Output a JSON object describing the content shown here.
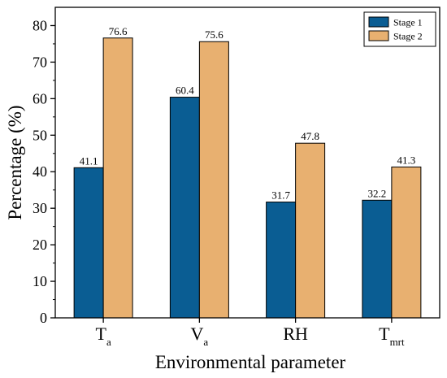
{
  "chart_data": {
    "type": "bar",
    "xlabel": "Environmental parameter",
    "ylabel": "Percentage (%)",
    "ylim": [
      0,
      85
    ],
    "yticks": [
      0,
      10,
      20,
      30,
      40,
      50,
      60,
      70,
      80
    ],
    "categories": [
      {
        "main": "T",
        "sub": "a"
      },
      {
        "main": "V",
        "sub": "a"
      },
      {
        "main": "RH",
        "sub": ""
      },
      {
        "main": "T",
        "sub": "mrt"
      }
    ],
    "series": [
      {
        "name": "Stage 1",
        "color": "#0a5d93",
        "values": [
          41.1,
          60.4,
          31.7,
          32.2
        ],
        "labels": [
          "41.1",
          "60.4",
          "31.7",
          "32.2"
        ]
      },
      {
        "name": "Stage 2",
        "color": "#e8b070",
        "values": [
          76.6,
          75.6,
          47.8,
          41.3
        ],
        "labels": [
          "76.6",
          "75.6",
          "47.8",
          "41.3"
        ]
      }
    ],
    "legend": "top-right",
    "grid": false
  }
}
